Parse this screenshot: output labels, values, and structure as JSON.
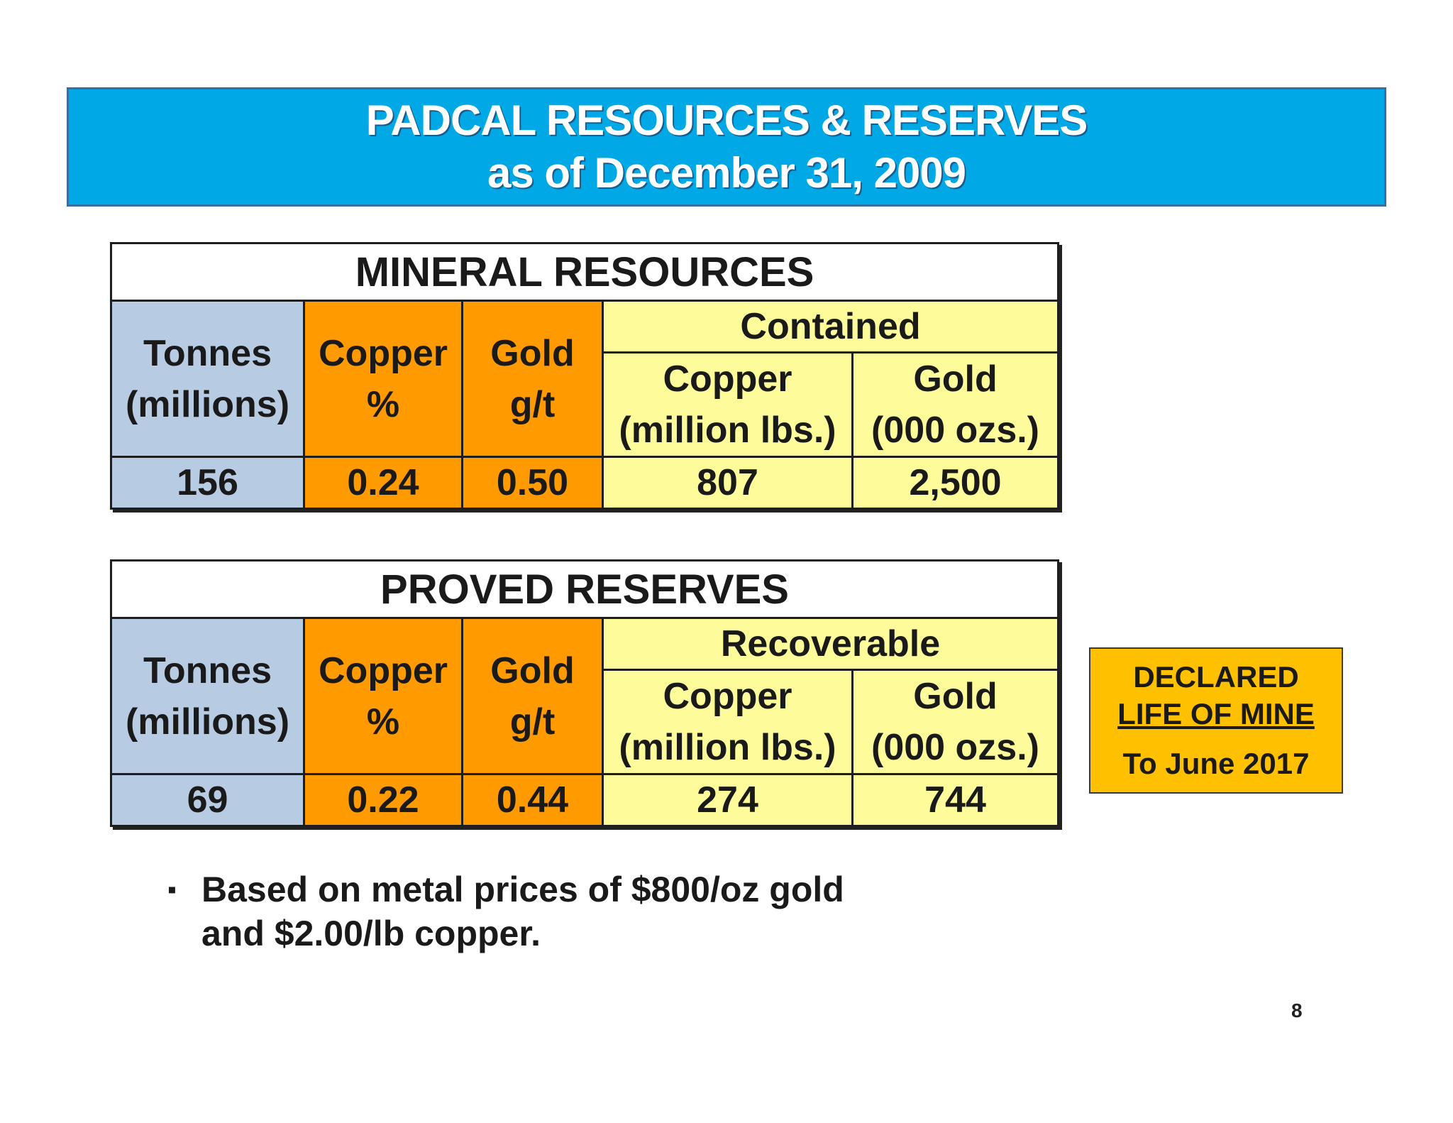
{
  "title": {
    "line1": "PADCAL RESOURCES & RESERVES",
    "line2": "as of December 31, 2009"
  },
  "resources": {
    "caption": "MINERAL RESOURCES",
    "group_header": "Contained",
    "col_tonnes": [
      "Tonnes",
      "(millions)"
    ],
    "col_copper_pct": [
      "Copper",
      "%"
    ],
    "col_gold_gt": [
      "Gold",
      "g/t"
    ],
    "col_copper_lbs": [
      "Copper",
      "(million lbs.)"
    ],
    "col_gold_ozs": [
      "Gold",
      "(000 ozs.)"
    ],
    "values": {
      "tonnes": "156",
      "copper_pct": "0.24",
      "gold_gt": "0.50",
      "copper_lbs": "807",
      "gold_ozs": "2,500"
    }
  },
  "reserves": {
    "caption": "PROVED RESERVES",
    "group_header": "Recoverable",
    "col_tonnes": [
      "Tonnes",
      "(millions)"
    ],
    "col_copper_pct": [
      "Copper",
      "%"
    ],
    "col_gold_gt": [
      "Gold",
      "g/t"
    ],
    "col_copper_lbs": [
      "Copper",
      "(million lbs.)"
    ],
    "col_gold_ozs": [
      "Gold",
      "(000 ozs.)"
    ],
    "values": {
      "tonnes": "69",
      "copper_pct": "0.22",
      "gold_gt": "0.44",
      "copper_lbs": "274",
      "gold_ozs": "744"
    }
  },
  "declared": {
    "line1": "DECLARED",
    "line2": "LIFE OF MINE",
    "line3": "To June 2017"
  },
  "bullet": {
    "mark": "▪",
    "line1": "Based on metal prices of $800/oz gold",
    "line2": "and $2.00/lb copper."
  },
  "page_number": "8",
  "colors": {
    "title_bg": "#00a9e6",
    "tonnes_bg": "#b7cce3",
    "grade_bg": "#ff9a00",
    "contained_bg": "#fefc9a",
    "declared_bg": "#ffc000"
  }
}
